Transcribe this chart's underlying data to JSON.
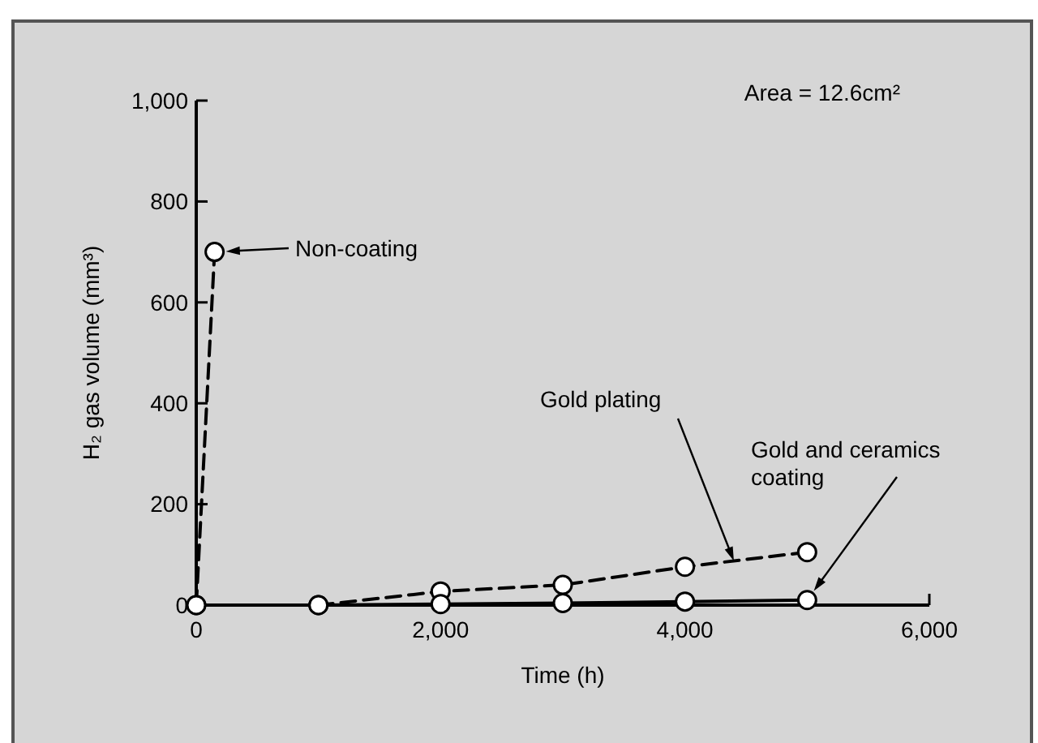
{
  "chart_data": {
    "type": "line",
    "xlabel": "Time (h)",
    "ylabel": "H₂ gas volume (mm³)",
    "annotations": [
      "Area = 12.6cm²",
      "Non-coating",
      "Gold plating",
      "Gold and ceramics coating"
    ],
    "xlim": [
      0,
      6000
    ],
    "ylim": [
      0,
      1000
    ],
    "xticks": [
      0,
      {
        "value": 2000,
        "label": "2,000"
      },
      {
        "value": 4000,
        "label": "4,000"
      },
      {
        "value": 6000,
        "label": "6,000"
      }
    ],
    "yticks": [
      0,
      200,
      400,
      600,
      800,
      {
        "value": 1000,
        "label": "1,000"
      }
    ],
    "grid": false,
    "marker": "circle",
    "series": [
      {
        "color": "#000000",
        "line_style": "dashed",
        "x": [
          0,
          150
        ],
        "values": [
          0,
          700
        ]
      },
      {
        "color": "#000000",
        "line_style": "dashed",
        "x": [
          1000,
          2000,
          3000,
          4000,
          5000
        ],
        "values": [
          0,
          27,
          40,
          76,
          105
        ]
      },
      {
        "color": "#000000",
        "line_style": "solid",
        "x": [
          0,
          1000,
          2000,
          3000,
          4000,
          5000
        ],
        "values": [
          0,
          0,
          2,
          4,
          7,
          10
        ]
      }
    ]
  }
}
